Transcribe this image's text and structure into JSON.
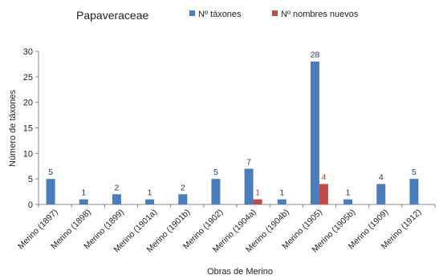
{
  "chart_data": {
    "type": "bar",
    "title": "Papaveraceae",
    "xlabel": "Obras de Merino",
    "ylabel": "Número de táxones",
    "ylim": [
      0,
      30
    ],
    "yticks": [
      0,
      5,
      10,
      15,
      20,
      25,
      30
    ],
    "grid": false,
    "legend_position": "top",
    "categories": [
      "Merino (1897)",
      "Merino (1898)",
      "Merino (1899)",
      "Merino (1901a)",
      "Merino (1901b)",
      "Merino (1902)",
      "Merino (1904a)",
      "Merino (1904b)",
      "Merino (1905)",
      "Merino (1905b)",
      "Merino (1909)",
      "Merino (1912)"
    ],
    "series": [
      {
        "name": "Nº táxones",
        "color": "#4a7ebb",
        "label_color": "#1f3864",
        "values": [
          5,
          1,
          2,
          1,
          2,
          5,
          7,
          1,
          28,
          1,
          4,
          5
        ]
      },
      {
        "name": "Nº nombres nuevos",
        "color": "#be4b48",
        "label_color": "#c0392b",
        "values": [
          null,
          null,
          null,
          null,
          null,
          null,
          1,
          null,
          4,
          null,
          null,
          null
        ]
      }
    ]
  }
}
